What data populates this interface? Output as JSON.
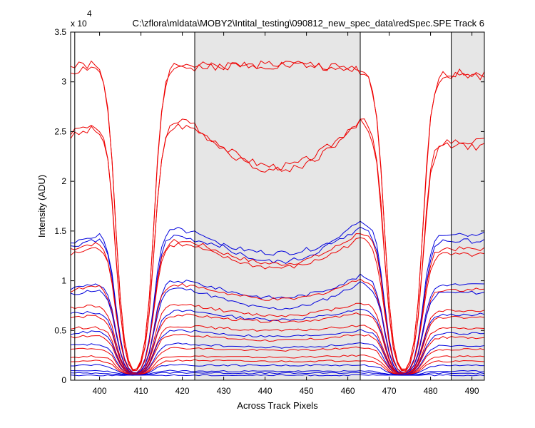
{
  "chart_data": {
    "type": "line",
    "title": "C:\\zflora\\mldata\\MOBY2\\Intital_testing\\090812_new_spec_data\\redSpec.SPE   Track 6",
    "xlabel": "Across Track Pixels",
    "ylabel": "Intensity (ADU)",
    "exponent_label": "x 10",
    "exponent_power": "4",
    "xlim": [
      393,
      493
    ],
    "ylim": [
      0,
      35000
    ],
    "x_ticks": [
      400,
      410,
      420,
      430,
      440,
      450,
      460,
      470,
      480,
      490
    ],
    "y_ticks": [
      0,
      5000,
      10000,
      15000,
      20000,
      25000,
      30000,
      35000
    ],
    "y_tick_labels": [
      "0",
      "0.5",
      "1",
      "1.5",
      "2",
      "2.5",
      "3",
      "3.5"
    ],
    "x_tick_labels": [
      "400",
      "410",
      "420",
      "430",
      "440",
      "450",
      "460",
      "470",
      "480",
      "490"
    ],
    "grid": false,
    "shaded_regions": [
      [
        423,
        463
      ],
      [
        485,
        493
      ]
    ],
    "vertical_lines": [
      394,
      423,
      463,
      485
    ],
    "curve_shape": {
      "dips": [
        [
          407,
          410,
          19
        ],
        [
          472,
          475,
          19
        ]
      ],
      "troughs": [
        [
          423,
          463,
          0.86
        ]
      ],
      "min_level": 500
    },
    "colors": {
      "red": "#ee0000",
      "blue": "#0000dd",
      "shade": "#e6e6e6",
      "axis": "#000000"
    },
    "series": [
      {
        "color": "red",
        "values": [
          31500,
          32000,
          31400,
          31800,
          31600,
          31000,
          30900
        ]
      },
      {
        "color": "red",
        "values": [
          31000,
          32200,
          31600,
          31700,
          31800,
          31200,
          30600
        ]
      },
      {
        "color": "red",
        "values": [
          24500,
          26000,
          25300,
          21500,
          22500,
          26300,
          24000
        ]
      },
      {
        "color": "red",
        "values": [
          25000,
          26400,
          25700,
          21100,
          21900,
          26000,
          23500
        ]
      },
      {
        "color": "blue",
        "values": [
          13600,
          15600,
          14800,
          11900,
          12400,
          16100,
          14700
        ]
      },
      {
        "color": "blue",
        "values": [
          13400,
          15000,
          14100,
          12800,
          13400,
          15300,
          14000
        ]
      },
      {
        "color": "red",
        "values": [
          13200,
          14300,
          13800,
          11700,
          12300,
          14900,
          13200
        ]
      },
      {
        "color": "red",
        "values": [
          12600,
          14000,
          13400,
          11300,
          11900,
          14300,
          12600
        ]
      },
      {
        "color": "blue",
        "values": [
          9200,
          10200,
          9800,
          8300,
          8600,
          10500,
          9600
        ]
      },
      {
        "color": "red",
        "values": [
          9000,
          9900,
          9400,
          8100,
          8500,
          10200,
          9100
        ]
      },
      {
        "color": "blue",
        "values": [
          8600,
          9500,
          9000,
          7200,
          7700,
          9800,
          8800
        ]
      },
      {
        "color": "red",
        "values": [
          7300,
          7700,
          7500,
          6500,
          6800,
          7800,
          7000
        ]
      },
      {
        "color": "blue",
        "values": [
          6700,
          7000,
          6900,
          6100,
          6400,
          7100,
          6600
        ]
      },
      {
        "color": "red",
        "values": [
          6300,
          6600,
          6500,
          5900,
          6100,
          6700,
          6300
        ]
      },
      {
        "color": "red",
        "values": [
          5200,
          5500,
          5400,
          5000,
          5100,
          5500,
          5200
        ]
      },
      {
        "color": "blue",
        "values": [
          4700,
          5100,
          4900,
          4400,
          4600,
          5000,
          4700
        ]
      },
      {
        "color": "red",
        "values": [
          4300,
          4700,
          4500,
          4000,
          4200,
          4600,
          4300
        ]
      },
      {
        "color": "blue",
        "values": [
          3500,
          3700,
          3600,
          3300,
          3400,
          3700,
          3500
        ]
      },
      {
        "color": "red",
        "values": [
          3100,
          3300,
          3200,
          3000,
          3100,
          3300,
          3100
        ]
      },
      {
        "color": "red",
        "values": [
          2300,
          2500,
          2400,
          2300,
          2300,
          2500,
          2400
        ]
      },
      {
        "color": "red",
        "values": [
          1900,
          2000,
          2000,
          1900,
          1900,
          2000,
          1900
        ]
      },
      {
        "color": "blue",
        "values": [
          1500,
          1600,
          1500,
          1500,
          1500,
          1500,
          1500
        ]
      },
      {
        "color": "blue",
        "values": [
          900,
          1000,
          900,
          900,
          900,
          900,
          900
        ]
      },
      {
        "color": "blue",
        "values": [
          700,
          750,
          750,
          700,
          700,
          750,
          700
        ]
      },
      {
        "color": "blue",
        "values": [
          500,
          500,
          500,
          500,
          500,
          500,
          500
        ]
      }
    ]
  }
}
